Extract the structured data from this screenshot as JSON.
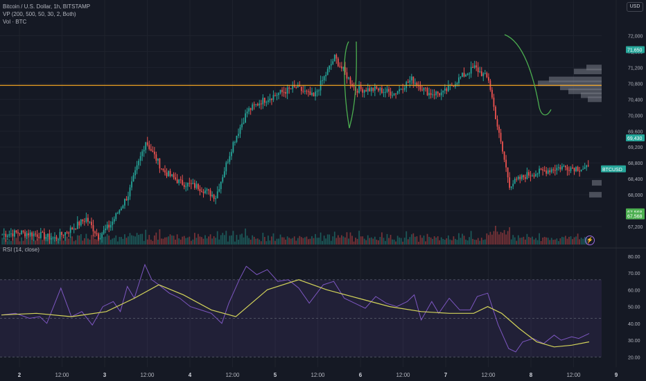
{
  "header": {
    "symbol_line": "Bitcoin / U.S. Dollar, 1h, BITSTAMP",
    "vp_line": "VP (200, 500, 50, 30, 2, Both)",
    "vol_line": "Vol · BTC",
    "currency": "USD",
    "rsi_line": "RSI (14, close)"
  },
  "colors": {
    "up": "#26a69a",
    "down": "#ef5350",
    "hline": "#f5a623",
    "rsi": "#7e57c2",
    "rsi_ma": "#d4d45a",
    "annotation": "#4caf50",
    "vp": "#787b86"
  },
  "chart_data": [
    {
      "type": "candlestick",
      "title": "Bitcoin / U.S. Dollar, 1h, BITSTAMP",
      "ylim": [
        66800,
        72200
      ],
      "y_ticks": [
        "72,000",
        "71,600",
        "71,200",
        "70,800",
        "70,400",
        "70,000",
        "69,600",
        "69,200",
        "68,800",
        "68,400",
        "68,000",
        "67,600",
        "67,200"
      ],
      "x_ticks": [
        "2",
        "12:00",
        "3",
        "12:00",
        "4",
        "12:00",
        "5",
        "12:00",
        "6",
        "12:00",
        "7",
        "12:00",
        "8",
        "12:00",
        "9"
      ],
      "price_tags": [
        {
          "label": "71,650",
          "value": 71650,
          "color": "#26a69a"
        },
        {
          "label": "69,430",
          "value": 69430,
          "color": "#26a69a"
        },
        {
          "label": "BTCUSD",
          "value": 68650,
          "color": "#26a69a"
        },
        {
          "label": "67,568",
          "value": 67568,
          "color": "#4caf50"
        },
        {
          "label": "67,568",
          "value": 67468,
          "color": "#4caf50"
        }
      ],
      "horizontal_line": 70750,
      "anchor_points": [
        [
          0,
          67000
        ],
        [
          10,
          67050
        ],
        [
          20,
          67000
        ],
        [
          30,
          66900
        ],
        [
          40,
          67150
        ],
        [
          48,
          67400
        ],
        [
          55,
          66950
        ],
        [
          62,
          67250
        ],
        [
          72,
          68000
        ],
        [
          82,
          69350
        ],
        [
          92,
          68600
        ],
        [
          102,
          68300
        ],
        [
          112,
          68200
        ],
        [
          122,
          67950
        ],
        [
          132,
          69300
        ],
        [
          140,
          70100
        ],
        [
          148,
          70350
        ],
        [
          158,
          70550
        ],
        [
          168,
          70700
        ],
        [
          178,
          70450
        ],
        [
          190,
          71450
        ],
        [
          202,
          70650
        ],
        [
          214,
          70650
        ],
        [
          224,
          70550
        ],
        [
          234,
          70900
        ],
        [
          244,
          70550
        ],
        [
          252,
          70550
        ],
        [
          262,
          70950
        ],
        [
          270,
          71200
        ],
        [
          278,
          70900
        ],
        [
          284,
          69500
        ],
        [
          290,
          68250
        ],
        [
          300,
          68500
        ],
        [
          310,
          68600
        ],
        [
          320,
          68700
        ],
        [
          336,
          68650
        ]
      ],
      "candle_count": 336
    },
    {
      "type": "line",
      "title": "RSI (14, close)",
      "ylim": [
        16,
        82
      ],
      "y_ticks": [
        "80.00",
        "70.00",
        "60.00",
        "50.00",
        "40.00",
        "30.00",
        "20.00"
      ],
      "band": [
        20,
        66
      ],
      "series": [
        {
          "name": "RSI",
          "points": [
            [
              0,
              45
            ],
            [
              8,
              46
            ],
            [
              16,
              43
            ],
            [
              22,
              44
            ],
            [
              26,
              40
            ],
            [
              34,
              61
            ],
            [
              40,
              44
            ],
            [
              46,
              47
            ],
            [
              52,
              39
            ],
            [
              58,
              50
            ],
            [
              64,
              53
            ],
            [
              68,
              47
            ],
            [
              72,
              62
            ],
            [
              76,
              55
            ],
            [
              82,
              75
            ],
            [
              86,
              66
            ],
            [
              90,
              63
            ],
            [
              96,
              58
            ],
            [
              102,
              55
            ],
            [
              108,
              50
            ],
            [
              114,
              48
            ],
            [
              120,
              46
            ],
            [
              126,
              40
            ],
            [
              130,
              52
            ],
            [
              136,
              66
            ],
            [
              140,
              74
            ],
            [
              146,
              69
            ],
            [
              152,
              72
            ],
            [
              158,
              65
            ],
            [
              164,
              66
            ],
            [
              170,
              61
            ],
            [
              176,
              52
            ],
            [
              184,
              63
            ],
            [
              190,
              65
            ],
            [
              196,
              55
            ],
            [
              202,
              52
            ],
            [
              208,
              49
            ],
            [
              214,
              56
            ],
            [
              220,
              52
            ],
            [
              226,
              50
            ],
            [
              232,
              53
            ],
            [
              236,
              57
            ],
            [
              240,
              42
            ],
            [
              246,
              53
            ],
            [
              250,
              46
            ],
            [
              256,
              55
            ],
            [
              262,
              48
            ],
            [
              268,
              48
            ],
            [
              272,
              56
            ],
            [
              278,
              58
            ],
            [
              284,
              39
            ],
            [
              290,
              25
            ],
            [
              294,
              23
            ],
            [
              298,
              29
            ],
            [
              304,
              31
            ],
            [
              310,
              28
            ],
            [
              316,
              33
            ],
            [
              320,
              30
            ],
            [
              326,
              32
            ],
            [
              330,
              31
            ],
            [
              336,
              34
            ]
          ]
        },
        {
          "name": "RSI MA",
          "points": [
            [
              0,
              45
            ],
            [
              20,
              46
            ],
            [
              40,
              44
            ],
            [
              60,
              47
            ],
            [
              76,
              55
            ],
            [
              90,
              63
            ],
            [
              104,
              57
            ],
            [
              120,
              48
            ],
            [
              134,
              44
            ],
            [
              152,
              60
            ],
            [
              170,
              66
            ],
            [
              186,
              60
            ],
            [
              204,
              55
            ],
            [
              222,
              50
            ],
            [
              240,
              47
            ],
            [
              256,
              46
            ],
            [
              270,
              46
            ],
            [
              278,
              50
            ],
            [
              286,
              46
            ],
            [
              296,
              37
            ],
            [
              306,
              29
            ],
            [
              316,
              26
            ],
            [
              326,
              27
            ],
            [
              336,
              29
            ]
          ]
        }
      ]
    }
  ]
}
